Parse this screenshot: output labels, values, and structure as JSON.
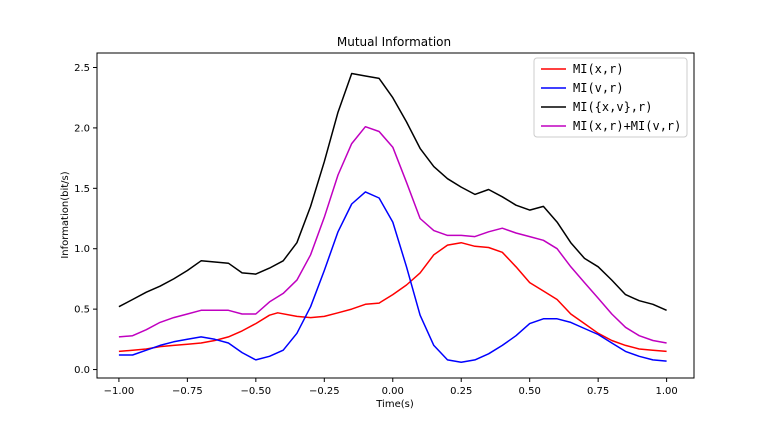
{
  "chart_data": {
    "type": "line",
    "title": "Mutual Information",
    "xlabel": "Time(s)",
    "ylabel": "Information(bit/s)",
    "xlim": [
      -1.08,
      1.1
    ],
    "ylim": [
      -0.07,
      2.62
    ],
    "xticks": [
      -1.0,
      -0.75,
      -0.5,
      -0.25,
      0.0,
      0.25,
      0.5,
      0.75,
      1.0
    ],
    "xtick_labels": [
      "−1.00",
      "−0.75",
      "−0.50",
      "−0.25",
      "0.00",
      "0.25",
      "0.50",
      "0.75",
      "1.00"
    ],
    "yticks": [
      0.0,
      0.5,
      1.0,
      1.5,
      2.0,
      2.5
    ],
    "ytick_labels": [
      "0.0",
      "0.5",
      "1.0",
      "1.5",
      "2.0",
      "2.5"
    ],
    "legend_position": "top-right",
    "series": [
      {
        "name": "MI(x,r)",
        "color": "#ff0000",
        "x": [
          -1.0,
          -0.95,
          -0.9,
          -0.85,
          -0.8,
          -0.75,
          -0.7,
          -0.65,
          -0.6,
          -0.55,
          -0.5,
          -0.45,
          -0.42,
          -0.35,
          -0.3,
          -0.25,
          -0.2,
          -0.15,
          -0.1,
          -0.05,
          0.0,
          0.05,
          0.1,
          0.15,
          0.2,
          0.25,
          0.3,
          0.35,
          0.4,
          0.45,
          0.5,
          0.55,
          0.6,
          0.65,
          0.7,
          0.75,
          0.8,
          0.85,
          0.9,
          0.95,
          1.0
        ],
        "y": [
          0.15,
          0.16,
          0.17,
          0.19,
          0.2,
          0.21,
          0.22,
          0.24,
          0.27,
          0.32,
          0.38,
          0.45,
          0.47,
          0.44,
          0.43,
          0.44,
          0.47,
          0.5,
          0.54,
          0.55,
          0.62,
          0.7,
          0.8,
          0.95,
          1.03,
          1.05,
          1.02,
          1.01,
          0.97,
          0.85,
          0.72,
          0.65,
          0.58,
          0.46,
          0.38,
          0.3,
          0.24,
          0.2,
          0.17,
          0.16,
          0.15
        ]
      },
      {
        "name": "MI(v,r)",
        "color": "#0000ff",
        "x": [
          -1.0,
          -0.95,
          -0.9,
          -0.85,
          -0.8,
          -0.75,
          -0.7,
          -0.65,
          -0.6,
          -0.55,
          -0.5,
          -0.45,
          -0.4,
          -0.35,
          -0.3,
          -0.25,
          -0.2,
          -0.15,
          -0.1,
          -0.05,
          0.0,
          0.05,
          0.1,
          0.15,
          0.2,
          0.25,
          0.3,
          0.35,
          0.4,
          0.45,
          0.5,
          0.55,
          0.6,
          0.65,
          0.7,
          0.75,
          0.8,
          0.85,
          0.9,
          0.95,
          1.0
        ],
        "y": [
          0.12,
          0.12,
          0.16,
          0.2,
          0.23,
          0.25,
          0.27,
          0.25,
          0.22,
          0.14,
          0.08,
          0.11,
          0.16,
          0.3,
          0.52,
          0.82,
          1.14,
          1.37,
          1.47,
          1.42,
          1.22,
          0.85,
          0.45,
          0.2,
          0.08,
          0.06,
          0.08,
          0.13,
          0.2,
          0.28,
          0.38,
          0.42,
          0.42,
          0.39,
          0.34,
          0.29,
          0.22,
          0.15,
          0.11,
          0.08,
          0.07
        ]
      },
      {
        "name": "MI({x,v},r)",
        "color": "#000000",
        "x": [
          -1.0,
          -0.95,
          -0.9,
          -0.85,
          -0.8,
          -0.75,
          -0.7,
          -0.65,
          -0.6,
          -0.55,
          -0.5,
          -0.45,
          -0.4,
          -0.35,
          -0.3,
          -0.25,
          -0.2,
          -0.15,
          -0.1,
          -0.05,
          0.0,
          0.05,
          0.1,
          0.15,
          0.2,
          0.25,
          0.3,
          0.35,
          0.4,
          0.45,
          0.5,
          0.55,
          0.6,
          0.65,
          0.7,
          0.75,
          0.8,
          0.85,
          0.9,
          0.95,
          1.0
        ],
        "y": [
          0.52,
          0.58,
          0.64,
          0.69,
          0.75,
          0.82,
          0.9,
          0.89,
          0.88,
          0.8,
          0.79,
          0.84,
          0.9,
          1.05,
          1.35,
          1.72,
          2.13,
          2.45,
          2.43,
          2.41,
          2.25,
          2.05,
          1.83,
          1.68,
          1.58,
          1.51,
          1.45,
          1.49,
          1.43,
          1.36,
          1.32,
          1.35,
          1.22,
          1.05,
          0.92,
          0.85,
          0.74,
          0.62,
          0.57,
          0.54,
          0.49
        ]
      },
      {
        "name": "MI(x,r)+MI(v,r)",
        "color": "#c000c0",
        "x": [
          -1.0,
          -0.95,
          -0.9,
          -0.85,
          -0.8,
          -0.75,
          -0.7,
          -0.65,
          -0.6,
          -0.55,
          -0.5,
          -0.45,
          -0.4,
          -0.35,
          -0.3,
          -0.25,
          -0.2,
          -0.15,
          -0.1,
          -0.05,
          0.0,
          0.05,
          0.1,
          0.15,
          0.2,
          0.25,
          0.3,
          0.35,
          0.4,
          0.45,
          0.5,
          0.55,
          0.6,
          0.65,
          0.7,
          0.75,
          0.8,
          0.85,
          0.9,
          0.95,
          1.0
        ],
        "y": [
          0.27,
          0.28,
          0.33,
          0.39,
          0.43,
          0.46,
          0.49,
          0.49,
          0.49,
          0.46,
          0.46,
          0.56,
          0.63,
          0.74,
          0.95,
          1.26,
          1.61,
          1.87,
          2.01,
          1.97,
          1.84,
          1.55,
          1.25,
          1.15,
          1.11,
          1.11,
          1.1,
          1.14,
          1.17,
          1.13,
          1.1,
          1.07,
          1.0,
          0.85,
          0.72,
          0.59,
          0.46,
          0.35,
          0.28,
          0.24,
          0.22
        ]
      }
    ]
  }
}
